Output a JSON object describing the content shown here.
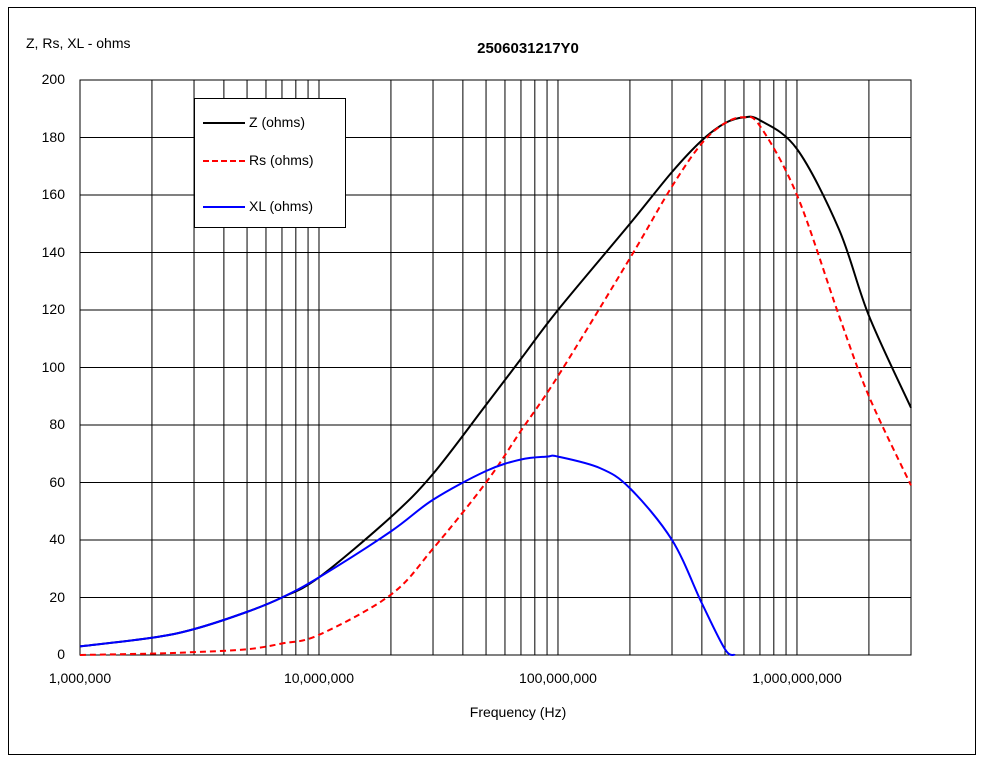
{
  "chart_data": {
    "type": "line",
    "title": "2506031217Y0",
    "xlabel": "Frequency (Hz)",
    "ylabel": "Z, Rs, XL - ohms",
    "x_scale": "log",
    "xlim": [
      1000000,
      3000000000
    ],
    "ylim": [
      0,
      200
    ],
    "x_ticks": [
      "1,000,000",
      "10,000,000",
      "100,000,000",
      "1,000,000,000"
    ],
    "y_ticks": [
      "0",
      "20",
      "40",
      "60",
      "80",
      "100",
      "120",
      "140",
      "160",
      "180",
      "200"
    ],
    "grid": true,
    "legend_position": "top-left",
    "series": [
      {
        "name": "Z (ohms)",
        "color": "#000000",
        "dash": "solid",
        "x": [
          1000000,
          2000000,
          3000000,
          5000000,
          7000000,
          10000000,
          20000000,
          30000000,
          50000000,
          70000000,
          100000000,
          200000000,
          300000000,
          400000000,
          500000000,
          600000000,
          700000000,
          1000000000,
          1500000000,
          2000000000,
          3000000000
        ],
        "y": [
          3,
          6,
          9,
          15,
          20,
          27,
          48,
          63,
          87,
          103,
          120,
          150,
          168,
          179,
          185,
          187,
          186,
          176,
          148,
          118,
          86
        ]
      },
      {
        "name": "Rs (ohms)",
        "color": "#ff0000",
        "dash": "dashed",
        "x": [
          1000000,
          2000000,
          3000000,
          5000000,
          7000000,
          10000000,
          20000000,
          30000000,
          50000000,
          70000000,
          100000000,
          200000000,
          300000000,
          400000000,
          500000000,
          600000000,
          700000000,
          1000000000,
          1500000000,
          2000000000,
          3000000000
        ],
        "y": [
          0,
          0.5,
          1,
          2,
          4,
          7,
          21,
          37,
          60,
          78,
          97,
          138,
          163,
          178,
          185,
          187,
          184,
          160,
          118,
          90,
          59
        ]
      },
      {
        "name": "XL (ohms)",
        "color": "#0000ff",
        "dash": "solid",
        "x": [
          1000000,
          2000000,
          3000000,
          5000000,
          7000000,
          10000000,
          20000000,
          30000000,
          50000000,
          70000000,
          90000000,
          100000000,
          150000000,
          200000000,
          300000000,
          400000000,
          500000000,
          550000000
        ],
        "y": [
          3,
          6,
          9,
          15,
          20,
          27,
          43,
          54,
          64,
          68,
          69,
          69,
          65,
          58,
          40,
          18,
          2,
          0
        ]
      }
    ]
  }
}
